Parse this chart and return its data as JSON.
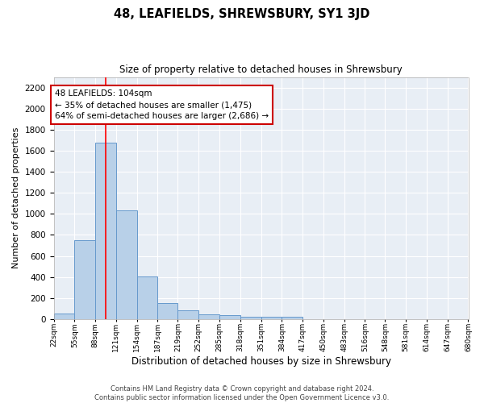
{
  "title": "48, LEAFIELDS, SHREWSBURY, SY1 3JD",
  "subtitle": "Size of property relative to detached houses in Shrewsbury",
  "xlabel": "Distribution of detached houses by size in Shrewsbury",
  "ylabel": "Number of detached properties",
  "bar_color": "#b8d0e8",
  "bar_edge_color": "#6699cc",
  "background_color": "#e8eef5",
  "grid_color": "#ffffff",
  "annotation_box_color": "#cc0000",
  "annotation_line1": "48 LEAFIELDS: 104sqm",
  "annotation_line2": "← 35% of detached houses are smaller (1,475)",
  "annotation_line3": "64% of semi-detached houses are larger (2,686) →",
  "property_line_x": 104,
  "ylim": [
    0,
    2300
  ],
  "yticks": [
    0,
    200,
    400,
    600,
    800,
    1000,
    1200,
    1400,
    1600,
    1800,
    2000,
    2200
  ],
  "bin_edges": [
    22,
    55,
    88,
    121,
    154,
    187,
    219,
    252,
    285,
    318,
    351,
    384,
    417,
    450,
    483,
    516,
    548,
    581,
    614,
    647,
    680
  ],
  "bar_heights": [
    50,
    750,
    1680,
    1030,
    405,
    150,
    85,
    45,
    35,
    20,
    20,
    20,
    0,
    0,
    0,
    0,
    0,
    0,
    0,
    0
  ],
  "footer_line1": "Contains HM Land Registry data © Crown copyright and database right 2024.",
  "footer_line2": "Contains public sector information licensed under the Open Government Licence v3.0.",
  "figwidth": 6.0,
  "figheight": 5.0,
  "dpi": 100
}
